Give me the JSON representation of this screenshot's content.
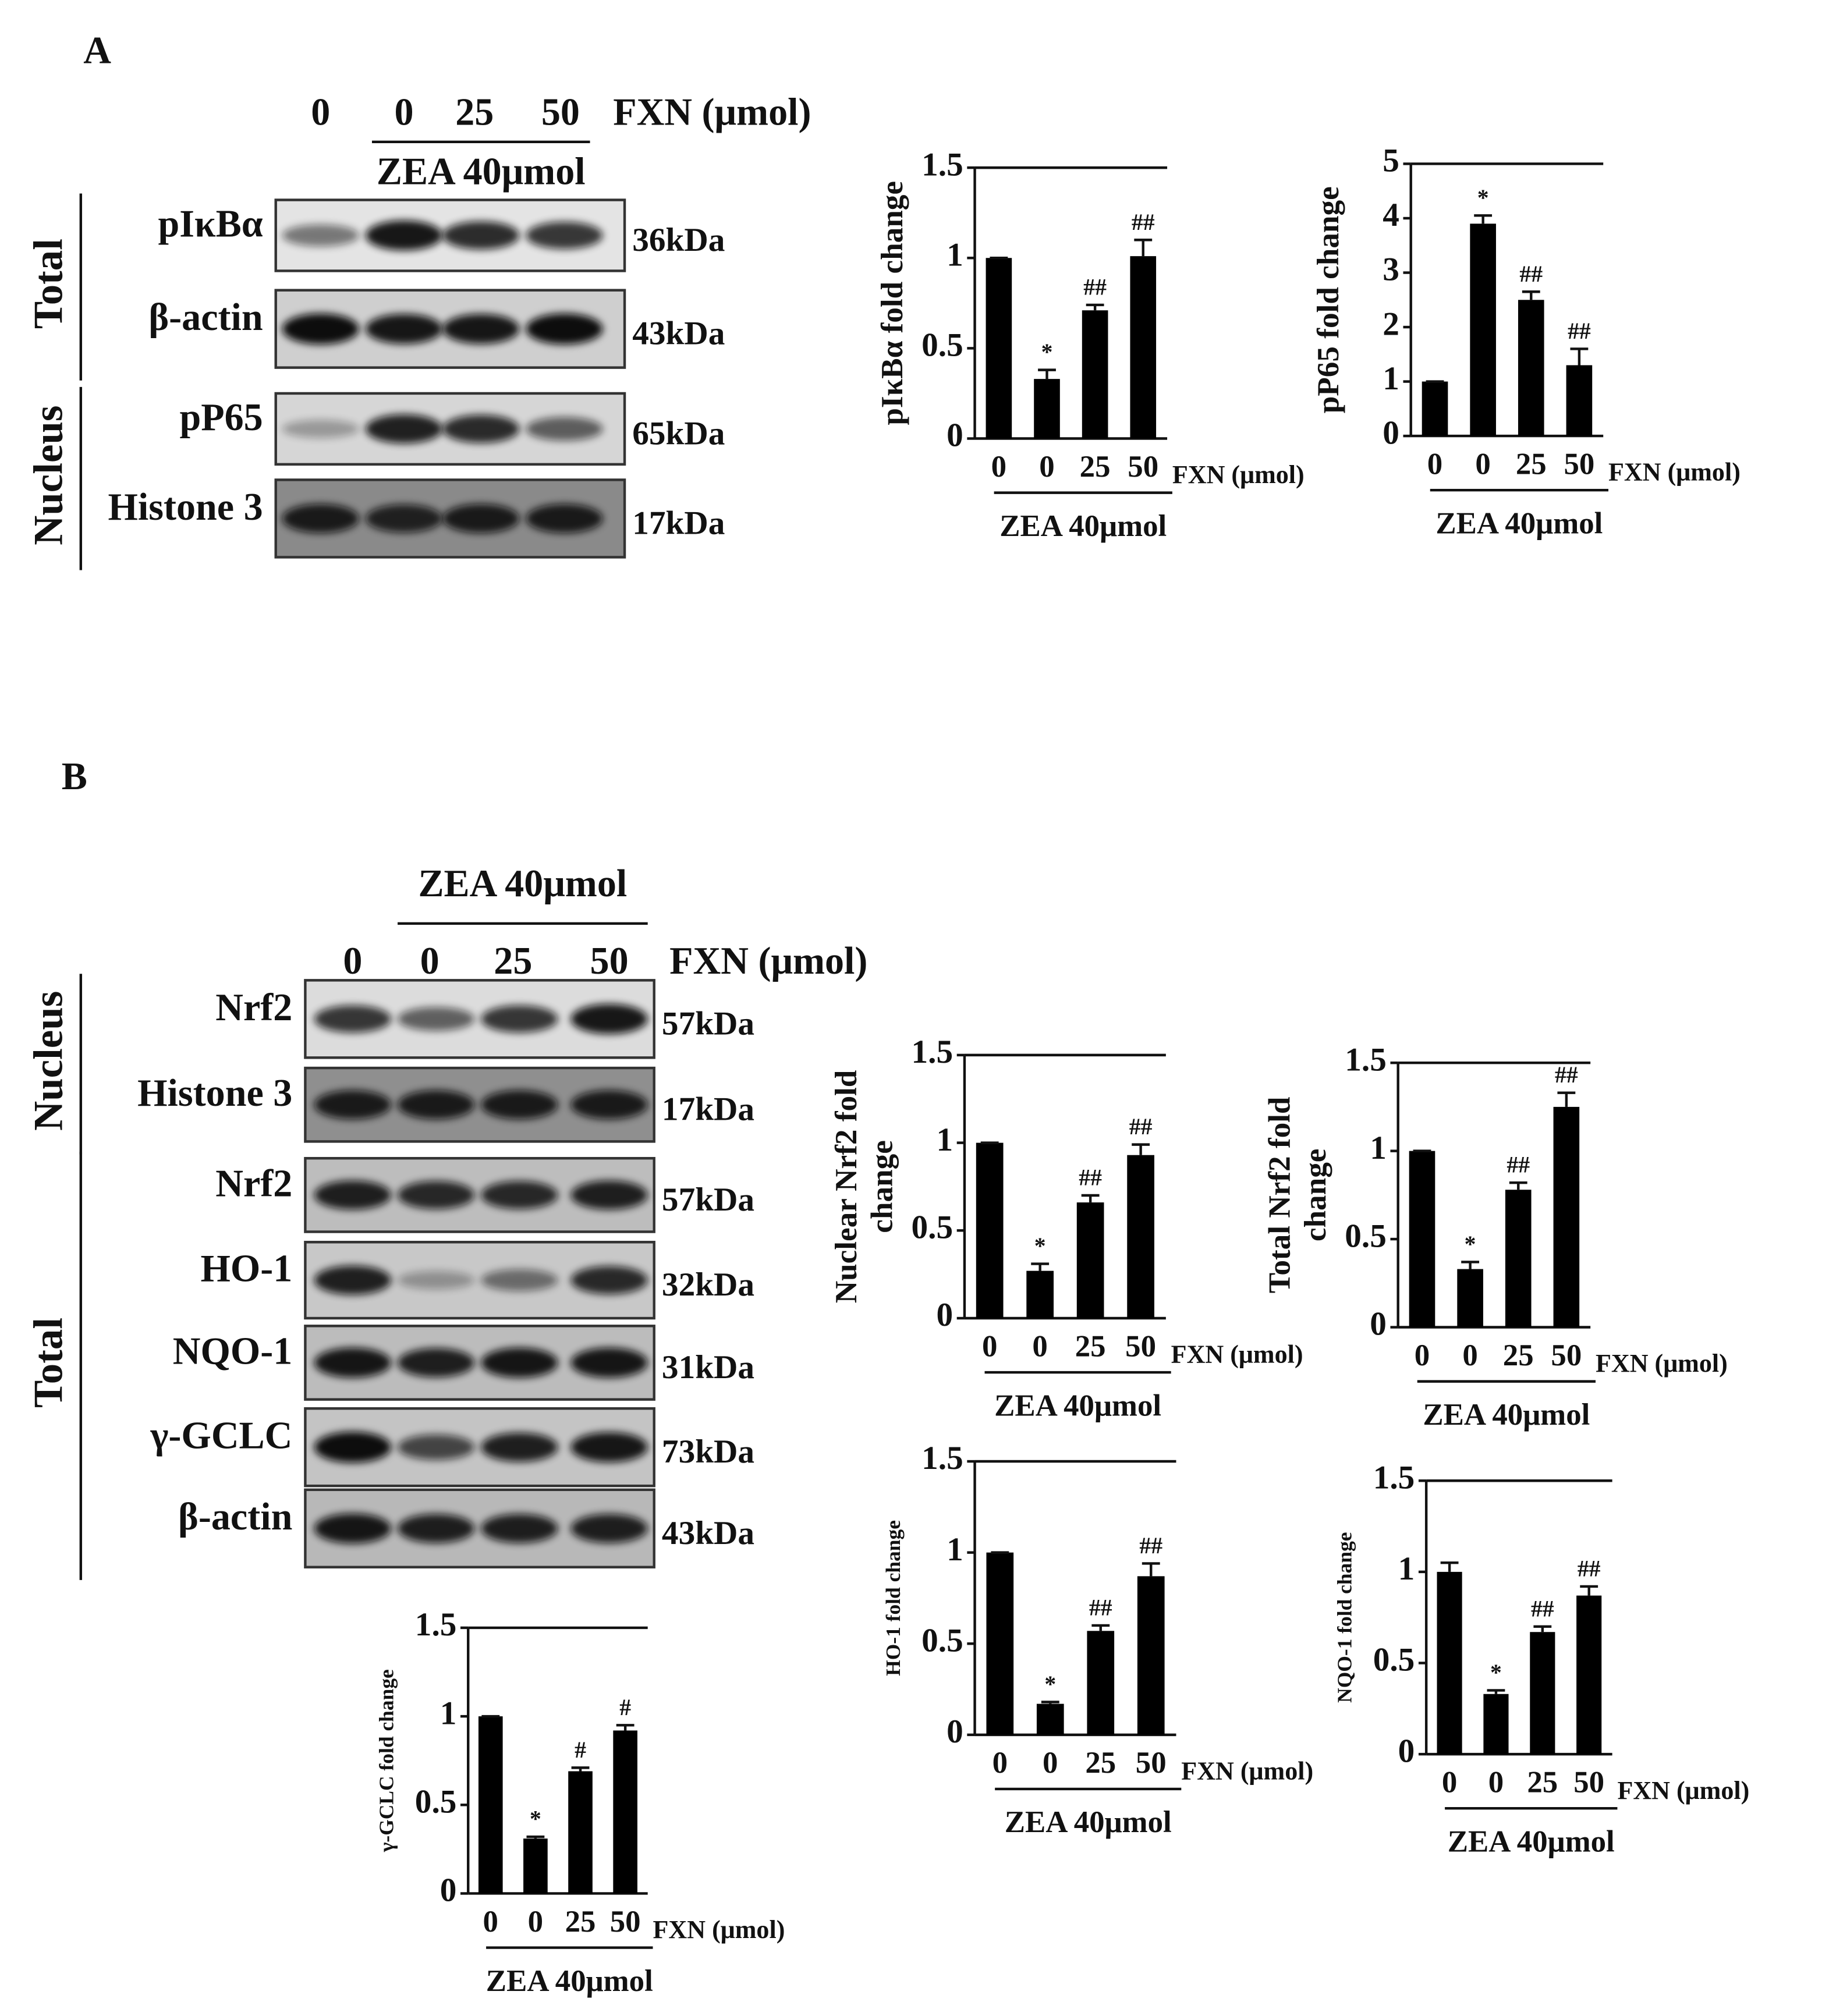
{
  "panels": [
    {
      "label": "A",
      "lanes": [
        "0",
        "0",
        "25",
        "50"
      ],
      "treatment": "FXN (μmol)",
      "group": "ZEA 40μmol",
      "sections": [
        {
          "name": "Total",
          "rows": [
            {
              "protein": "pIκBα",
              "size": "36kDa"
            },
            {
              "protein": "β-actin",
              "size": "43kDa"
            }
          ]
        },
        {
          "name": "Nucleus",
          "rows": [
            {
              "protein": "pP65",
              "size": "65kDa"
            },
            {
              "protein": "Histone 3",
              "size": "17kDa"
            }
          ]
        }
      ]
    },
    {
      "label": "B",
      "lanes": [
        "0",
        "0",
        "25",
        "50"
      ],
      "treatment": "FXN (μmol)",
      "group": "ZEA 40μmol",
      "sections": [
        {
          "name": "Nucleus",
          "rows": [
            {
              "protein": "Nrf2",
              "size": "57kDa"
            },
            {
              "protein": "Histone 3",
              "size": "17kDa"
            }
          ]
        },
        {
          "name": "Total",
          "rows": [
            {
              "protein": "Nrf2",
              "size": "57kDa"
            },
            {
              "protein": "HO-1",
              "size": "32kDa"
            },
            {
              "protein": "NQO-1",
              "size": "31kDa"
            },
            {
              "protein": "γ-GCLC",
              "size": "73kDa"
            },
            {
              "protein": "β-actin",
              "size": "43kDa"
            }
          ]
        }
      ]
    }
  ],
  "chart_data": [
    {
      "type": "bar",
      "ylabel": [
        "pIκBα fold change"
      ],
      "categories": [
        "0",
        "0",
        "25",
        "50"
      ],
      "xlabel": "FXN (μmol)",
      "group": "ZEA 40μmol",
      "values": [
        1,
        0.33,
        0.71,
        1.01
      ],
      "errors": [
        0,
        0.05,
        0.03,
        0.09
      ],
      "annotations": [
        "*",
        "##",
        "##"
      ],
      "color": "#000000",
      "ylim": [
        0,
        1.5
      ],
      "yticks": [
        0,
        0.5,
        1,
        1.5
      ]
    },
    {
      "type": "bar",
      "ylabel": [
        "pP65 fold change"
      ],
      "categories": [
        "0",
        "0",
        "25",
        "50"
      ],
      "xlabel": "FXN (μmol)",
      "group": "ZEA 40μmol",
      "values": [
        1,
        3.9,
        2.5,
        1.3
      ],
      "errors": [
        0,
        0.15,
        0.15,
        0.3
      ],
      "annotations": [
        "*",
        "##",
        "##"
      ],
      "color": "#000000",
      "ylim": [
        0,
        5
      ],
      "yticks": [
        0,
        1,
        2,
        3,
        4,
        5
      ]
    },
    {
      "type": "bar",
      "ylabel": [
        "Nuclear Nrf2 fold",
        "change"
      ],
      "categories": [
        "0",
        "0",
        "25",
        "50"
      ],
      "xlabel": "FXN (μmol)",
      "group": "ZEA 40μmol",
      "values": [
        1,
        0.27,
        0.66,
        0.93
      ],
      "errors": [
        0,
        0.04,
        0.04,
        0.06
      ],
      "annotations": [
        "*",
        "##",
        "##"
      ],
      "color": "#000000",
      "ylim": [
        0,
        1.5
      ],
      "yticks": [
        0,
        0.5,
        1,
        1.5
      ]
    },
    {
      "type": "bar",
      "ylabel": [
        "Total Nrf2 fold",
        "change"
      ],
      "categories": [
        "0",
        "0",
        "25",
        "50"
      ],
      "xlabel": "FXN (μmol)",
      "group": "ZEA 40μmol",
      "values": [
        1,
        0.33,
        0.78,
        1.25
      ],
      "errors": [
        0,
        0.04,
        0.04,
        0.08
      ],
      "annotations": [
        "*",
        "##",
        "##"
      ],
      "color": "#000000",
      "ylim": [
        0,
        1.5
      ],
      "yticks": [
        0,
        0.5,
        1,
        1.5
      ]
    },
    {
      "type": "bar",
      "ylabel": [
        "HO-1 fold change"
      ],
      "categories": [
        "0",
        "0",
        "25",
        "50"
      ],
      "xlabel": "FXN (μmol)",
      "group": "ZEA 40μmol",
      "values": [
        1,
        0.17,
        0.57,
        0.87
      ],
      "errors": [
        0,
        0.01,
        0.03,
        0.07
      ],
      "annotations": [
        "*",
        "##",
        "##"
      ],
      "color": "#000000",
      "ylim": [
        0,
        1.5
      ],
      "yticks": [
        0,
        0.5,
        1,
        1.5
      ]
    },
    {
      "type": "bar",
      "ylabel": [
        "NQO-1 fold change"
      ],
      "categories": [
        "0",
        "0",
        "25",
        "50"
      ],
      "xlabel": "FXN (μmol)",
      "group": "ZEA 40μmol",
      "values": [
        1,
        0.33,
        0.67,
        0.87
      ],
      "errors": [
        0.05,
        0.02,
        0.03,
        0.05
      ],
      "annotations": [
        "*",
        "##",
        "##"
      ],
      "color": "#000000",
      "ylim": [
        0,
        1.5
      ],
      "yticks": [
        0,
        0.5,
        1,
        1.5
      ]
    },
    {
      "type": "bar",
      "ylabel": [
        "γ-GCLC fold change"
      ],
      "categories": [
        "0",
        "0",
        "25",
        "50"
      ],
      "xlabel": "FXN (μmol)",
      "group": "ZEA 40μmol",
      "values": [
        1,
        0.31,
        0.69,
        0.92
      ],
      "errors": [
        0,
        0.01,
        0.02,
        0.03
      ],
      "annotations": [
        "*",
        "#",
        "#"
      ],
      "color": "#000000",
      "ylim": [
        0,
        1.5
      ],
      "yticks": [
        0,
        0.5,
        1,
        1.5
      ]
    }
  ]
}
